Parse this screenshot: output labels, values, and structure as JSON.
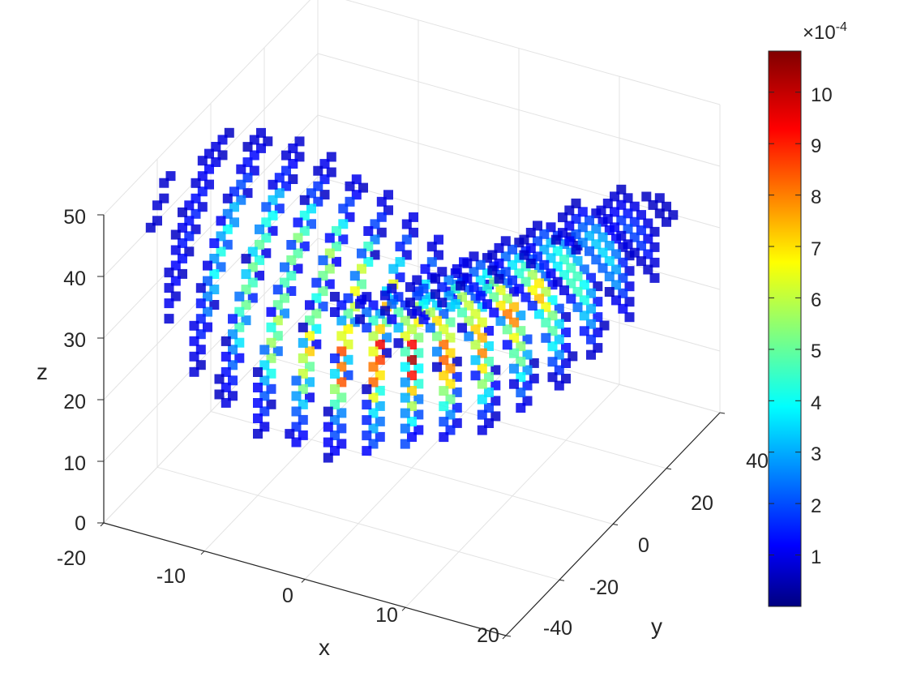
{
  "chart_data": {
    "type": "scatter3d",
    "title": "",
    "xlabel": "x",
    "ylabel": "y",
    "zlabel": "z",
    "xlim": [
      -20,
      20
    ],
    "ylim": [
      -40,
      40
    ],
    "zlim": [
      0,
      50
    ],
    "x_ticks": [
      "-20",
      "-10",
      "0",
      "10",
      "20"
    ],
    "y_ticks": [
      "-40",
      "-20",
      "0",
      "20",
      "40"
    ],
    "z_ticks": [
      "0",
      "10",
      "20",
      "30",
      "40",
      "50"
    ],
    "grid": true,
    "colormap": "jet",
    "colorbar": {
      "range": [
        0,
        10.8
      ],
      "ticks": [
        "1",
        "2",
        "3",
        "4",
        "5",
        "6",
        "7",
        "8",
        "9",
        "10"
      ],
      "multiplier_base": "×10",
      "multiplier_exp": "-4"
    },
    "description_shape": "Lorenz attractor butterfly: two lobes of voxels, each with a hole near its centre, colored by density (mostly low values, high values near the junction)."
  }
}
